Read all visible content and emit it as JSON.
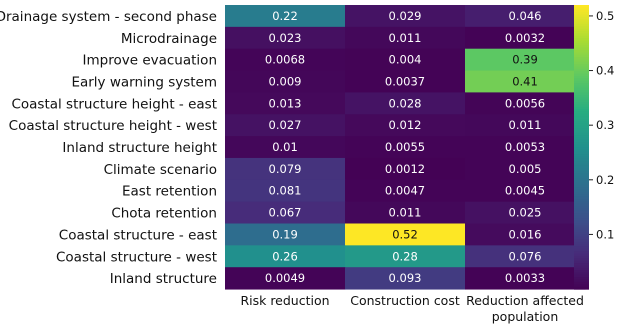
{
  "chart_data": {
    "type": "heatmap",
    "title": "",
    "xlabel": "",
    "ylabel": "",
    "rows": [
      "Drainage system - second phase",
      "Microdrainage",
      "Improve evacuation",
      "Early warning system",
      "Coastal structure height - east",
      "Coastal structure height - west",
      "Inland structure height",
      "Climate scenario",
      "East retention",
      "Chota retention",
      "Coastal structure - east",
      "Coastal structure - west",
      "Inland structure"
    ],
    "columns": [
      [
        "Risk reduction"
      ],
      [
        "Construction cost"
      ],
      [
        "Reduction affected",
        "population"
      ]
    ],
    "values": [
      [
        0.22,
        0.029,
        0.046
      ],
      [
        0.023,
        0.011,
        0.0032
      ],
      [
        0.0068,
        0.004,
        0.39
      ],
      [
        0.009,
        0.0037,
        0.41
      ],
      [
        0.013,
        0.028,
        0.0056
      ],
      [
        0.027,
        0.012,
        0.011
      ],
      [
        0.01,
        0.0055,
        0.0053
      ],
      [
        0.079,
        0.0012,
        0.005
      ],
      [
        0.081,
        0.0047,
        0.0045
      ],
      [
        0.067,
        0.011,
        0.025
      ],
      [
        0.19,
        0.52,
        0.016
      ],
      [
        0.26,
        0.28,
        0.076
      ],
      [
        0.0049,
        0.093,
        0.0033
      ]
    ],
    "labels": [
      [
        "0.22",
        "0.029",
        "0.046"
      ],
      [
        "0.023",
        "0.011",
        "0.0032"
      ],
      [
        "0.0068",
        "0.004",
        "0.39"
      ],
      [
        "0.009",
        "0.0037",
        "0.41"
      ],
      [
        "0.013",
        "0.028",
        "0.0056"
      ],
      [
        "0.027",
        "0.012",
        "0.011"
      ],
      [
        "0.01",
        "0.0055",
        "0.0053"
      ],
      [
        "0.079",
        "0.0012",
        "0.005"
      ],
      [
        "0.081",
        "0.0047",
        "0.0045"
      ],
      [
        "0.067",
        "0.011",
        "0.025"
      ],
      [
        "0.19",
        "0.52",
        "0.016"
      ],
      [
        "0.26",
        "0.28",
        "0.076"
      ],
      [
        "0.0049",
        "0.093",
        "0.0033"
      ]
    ],
    "colorscale": "viridis",
    "vmin": 0,
    "vmax": 0.52,
    "colorbar_ticks": [
      0.1,
      0.2,
      0.3,
      0.4,
      0.5
    ],
    "colorbar_tick_labels": [
      "0.1",
      "0.2",
      "0.3",
      "0.4",
      "0.5"
    ]
  }
}
